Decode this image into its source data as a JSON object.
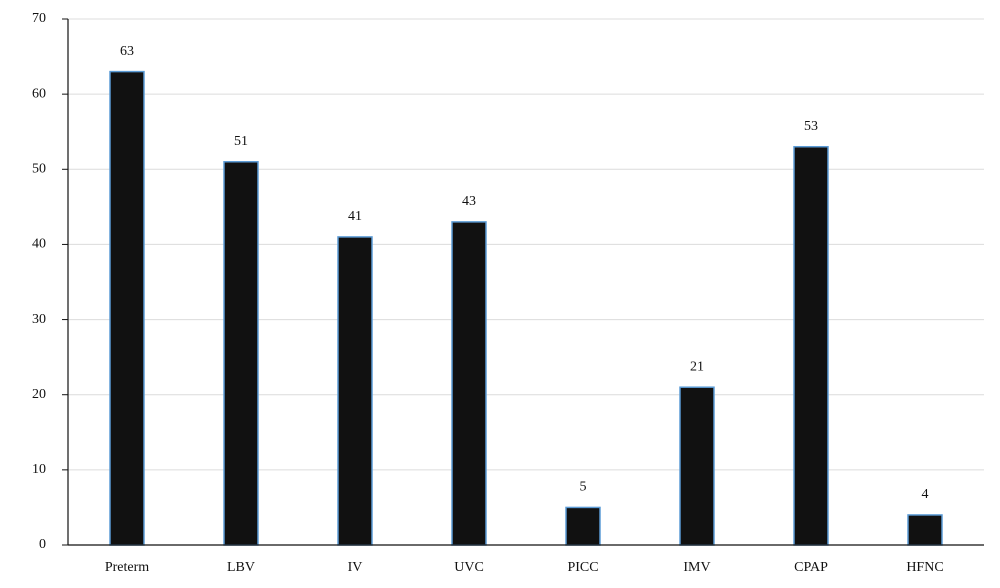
{
  "chart_data": {
    "type": "bar",
    "categories": [
      "Preterm",
      "LBV",
      "IV",
      "UVC",
      "PICC",
      "IMV",
      "CPAP",
      "HFNC"
    ],
    "values": [
      63,
      51,
      41,
      43,
      5,
      21,
      53,
      4
    ],
    "color": "#111111",
    "edge_color": "#5b9bd5",
    "ylim": [
      0,
      70
    ],
    "yticks": [
      0,
      10,
      20,
      30,
      40,
      50,
      60,
      70
    ],
    "grid": true
  }
}
